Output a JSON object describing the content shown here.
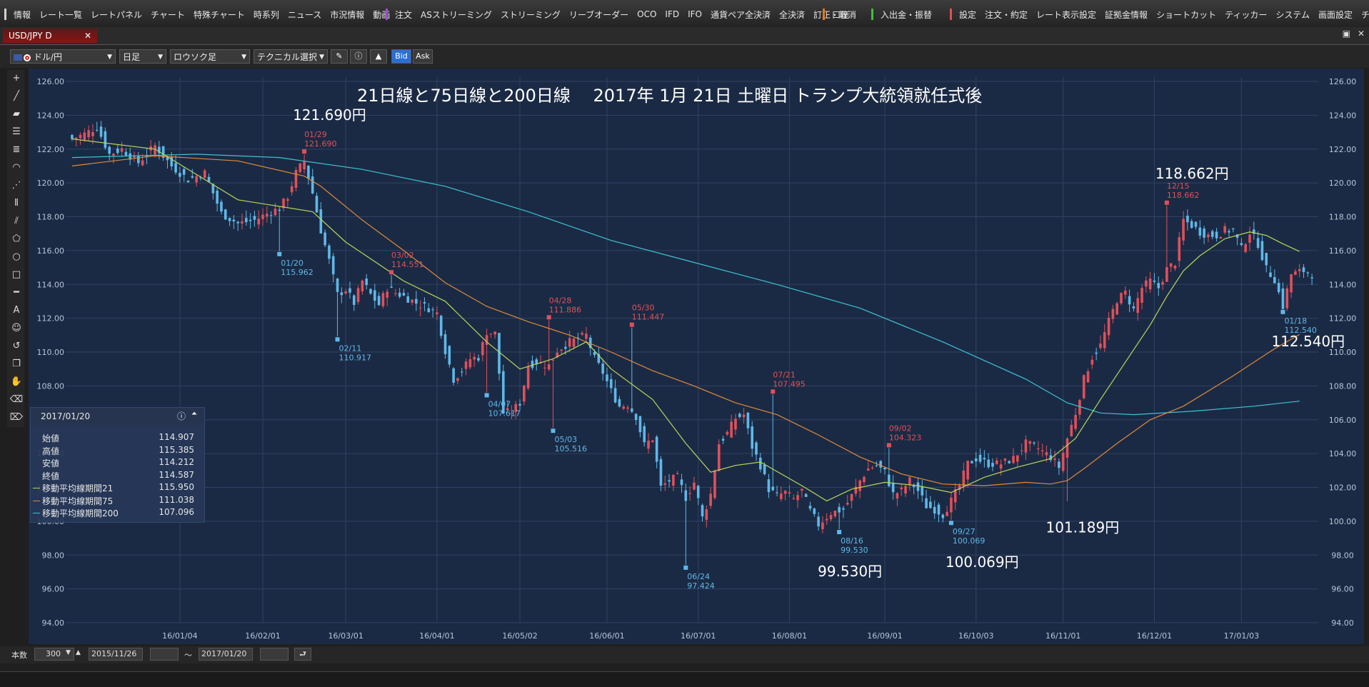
{
  "menu": {
    "group1": [
      "情報",
      "レート一覧",
      "レートパネル",
      "チャート",
      "特殊チャート",
      "時系列",
      "ニュース",
      "市況情報",
      "動画"
    ],
    "group2": [
      "注文",
      "ASストリーミング",
      "ストリーミング",
      "リーブオーダー",
      "OCO",
      "IFD",
      "IFO",
      "通貨ペア全決済",
      "全決済",
      "訂正・取消"
    ],
    "group3": [
      "口座"
    ],
    "group4": [
      "入出金・振替"
    ],
    "group5": [
      "設定",
      "注文・約定",
      "レート表示設定",
      "証拠金情報",
      "ショートカット",
      "ティッカー",
      "システム",
      "画面設定",
      "チャート"
    ]
  },
  "tab": {
    "title": "USD/JPY D"
  },
  "toolbar": {
    "pair": "ドル/円",
    "period": "日足",
    "style": "ロウソク足",
    "technical": "テクニカル選択",
    "bid": "Bid",
    "ask": "Ask"
  },
  "bottom": {
    "count_label": "本数",
    "count_value": "300",
    "from_date": "2015/11/26",
    "tilde": "～",
    "to_date": "2017/01/20"
  },
  "info_panel": {
    "date": "2017/01/20",
    "rows": [
      {
        "label": "始値",
        "value": "114.907",
        "color": ""
      },
      {
        "label": "高値",
        "value": "115.385",
        "color": ""
      },
      {
        "label": "安値",
        "value": "114.212",
        "color": ""
      },
      {
        "label": "終値",
        "value": "114.587",
        "color": ""
      },
      {
        "label": "移動平均線期間21",
        "value": "115.950",
        "color": "#b9d65a"
      },
      {
        "label": "移動平均線期間75",
        "value": "111.038",
        "color": "#e08a3a"
      },
      {
        "label": "移動平均線期間200",
        "value": "107.096",
        "color": "#3cc3d3"
      }
    ]
  },
  "colors": {
    "up": "#e0505a",
    "down": "#5fb8e8",
    "ma21": "#b9d65a",
    "ma75": "#e08a3a",
    "ma200": "#3cc3d3",
    "bg": "#1b2a44",
    "grid": "#2f4265"
  },
  "chart_data": {
    "type": "candlestick",
    "title": "21日線と75日線と200日線　 2017年 1月 21日 土曜日 トランプ大統領就任式後",
    "y_ticks": [
      "126.00",
      "124.00",
      "122.00",
      "120.00",
      "118.00",
      "116.00",
      "114.00",
      "112.00",
      "110.00",
      "108.00",
      "106.00",
      "104.00",
      "102.00",
      "100.00",
      "98.00",
      "96.00",
      "94.00"
    ],
    "ylim": [
      94,
      126
    ],
    "x_ticks": [
      "16/01/04",
      "16/02/01",
      "16/03/01",
      "16/04/01",
      "16/05/02",
      "16/06/01",
      "16/07/01",
      "16/08/01",
      "16/09/01",
      "16/10/03",
      "16/11/01",
      "16/12/01",
      "17/01/03"
    ],
    "x_tick_index": [
      26,
      46,
      66,
      88,
      108,
      129,
      151,
      173,
      196,
      218,
      239,
      261,
      282
    ],
    "bars": 300,
    "path": [
      [
        0,
        122.6
      ],
      [
        3,
        122.9
      ],
      [
        6,
        123.3
      ],
      [
        9,
        121.7
      ],
      [
        12,
        122.0
      ],
      [
        16,
        121.2
      ],
      [
        20,
        122.2
      ],
      [
        24,
        121.0
      ],
      [
        28,
        120.2
      ],
      [
        32,
        120.6
      ],
      [
        36,
        118.2
      ],
      [
        40,
        117.6
      ],
      [
        44,
        117.8
      ],
      [
        48,
        118.3
      ],
      [
        50,
        118.5
      ],
      [
        52,
        119.2
      ],
      [
        54,
        120.6
      ],
      [
        56,
        121.3
      ],
      [
        58,
        119.4
      ],
      [
        60,
        117.2
      ],
      [
        62,
        115.4
      ],
      [
        64,
        113.4
      ],
      [
        66,
        113.7
      ],
      [
        68,
        112.9
      ],
      [
        70,
        114.2
      ],
      [
        72,
        113.4
      ],
      [
        74,
        112.8
      ],
      [
        76,
        113.8
      ],
      [
        78,
        113.5
      ],
      [
        80,
        113.3
      ],
      [
        83,
        112.9
      ],
      [
        86,
        112.6
      ],
      [
        88,
        112.3
      ],
      [
        90,
        110.1
      ],
      [
        92,
        108.4
      ],
      [
        94,
        108.9
      ],
      [
        96,
        109.6
      ],
      [
        98,
        109.7
      ],
      [
        100,
        111.2
      ],
      [
        102,
        111.1
      ],
      [
        104,
        106.4
      ],
      [
        106,
        106.5
      ],
      [
        108,
        107.0
      ],
      [
        110,
        109.2
      ],
      [
        112,
        109.4
      ],
      [
        115,
        109.2
      ],
      [
        117,
        110.1
      ],
      [
        120,
        110.6
      ],
      [
        124,
        111.0
      ],
      [
        126,
        109.6
      ],
      [
        128,
        108.8
      ],
      [
        130,
        107.7
      ],
      [
        132,
        106.8
      ],
      [
        134,
        106.9
      ],
      [
        136,
        106.2
      ],
      [
        138,
        104.5
      ],
      [
        140,
        104.9
      ],
      [
        142,
        102.0
      ],
      [
        144,
        102.4
      ],
      [
        146,
        102.6
      ],
      [
        148,
        101.4
      ],
      [
        150,
        102.3
      ],
      [
        152,
        100.2
      ],
      [
        154,
        101.6
      ],
      [
        156,
        104.6
      ],
      [
        158,
        105.2
      ],
      [
        160,
        106.1
      ],
      [
        162,
        106.3
      ],
      [
        164,
        104.4
      ],
      [
        166,
        103.3
      ],
      [
        168,
        101.9
      ],
      [
        170,
        101.5
      ],
      [
        172,
        101.7
      ],
      [
        174,
        101.3
      ],
      [
        176,
        101.8
      ],
      [
        178,
        100.6
      ],
      [
        180,
        99.8
      ],
      [
        183,
        100.5
      ],
      [
        186,
        100.7
      ],
      [
        188,
        101.5
      ],
      [
        190,
        102.4
      ],
      [
        192,
        103.1
      ],
      [
        194,
        103.3
      ],
      [
        196,
        102.9
      ],
      [
        198,
        101.6
      ],
      [
        200,
        101.8
      ],
      [
        202,
        102.4
      ],
      [
        204,
        101.8
      ],
      [
        206,
        100.9
      ],
      [
        208,
        100.7
      ],
      [
        210,
        100.4
      ],
      [
        212,
        101.2
      ],
      [
        214,
        102.1
      ],
      [
        216,
        103.4
      ],
      [
        218,
        103.7
      ],
      [
        221,
        103.4
      ],
      [
        224,
        103.4
      ],
      [
        227,
        103.7
      ],
      [
        230,
        104.6
      ],
      [
        233,
        104.3
      ],
      [
        236,
        103.8
      ],
      [
        238,
        103.2
      ],
      [
        240,
        104.9
      ],
      [
        242,
        106.4
      ],
      [
        244,
        108.4
      ],
      [
        246,
        109.7
      ],
      [
        248,
        110.4
      ],
      [
        250,
        111.8
      ],
      [
        252,
        113.1
      ],
      [
        254,
        113.5
      ],
      [
        256,
        112.5
      ],
      [
        258,
        113.8
      ],
      [
        260,
        114.2
      ],
      [
        262,
        113.8
      ],
      [
        264,
        114.9
      ],
      [
        266,
        115.3
      ],
      [
        268,
        117.8
      ],
      [
        270,
        117.5
      ],
      [
        272,
        117.1
      ],
      [
        274,
        116.9
      ],
      [
        276,
        116.9
      ],
      [
        278,
        117.2
      ],
      [
        280,
        117.2
      ],
      [
        282,
        116.1
      ],
      [
        284,
        117.1
      ],
      [
        286,
        116.4
      ],
      [
        288,
        114.9
      ],
      [
        290,
        114.3
      ],
      [
        292,
        112.7
      ],
      [
        294,
        114.6
      ],
      [
        297,
        114.8
      ],
      [
        299,
        114.6
      ]
    ],
    "ma21": [
      [
        0,
        122.6
      ],
      [
        20,
        122.0
      ],
      [
        40,
        119.0
      ],
      [
        58,
        118.3
      ],
      [
        66,
        116.5
      ],
      [
        80,
        114.2
      ],
      [
        90,
        113.0
      ],
      [
        100,
        110.6
      ],
      [
        108,
        109.0
      ],
      [
        116,
        109.6
      ],
      [
        124,
        110.6
      ],
      [
        130,
        109.0
      ],
      [
        140,
        107.2
      ],
      [
        148,
        104.6
      ],
      [
        154,
        102.9
      ],
      [
        160,
        103.3
      ],
      [
        166,
        103.5
      ],
      [
        176,
        102.1
      ],
      [
        182,
        101.2
      ],
      [
        188,
        101.9
      ],
      [
        196,
        102.3
      ],
      [
        204,
        102.1
      ],
      [
        212,
        101.7
      ],
      [
        220,
        102.6
      ],
      [
        228,
        103.2
      ],
      [
        236,
        103.7
      ],
      [
        242,
        104.9
      ],
      [
        248,
        107.2
      ],
      [
        254,
        109.4
      ],
      [
        260,
        111.6
      ],
      [
        264,
        113.3
      ],
      [
        268,
        114.8
      ],
      [
        272,
        115.7
      ],
      [
        278,
        116.7
      ],
      [
        284,
        117.1
      ],
      [
        288,
        116.9
      ],
      [
        292,
        116.4
      ],
      [
        296,
        115.95
      ]
    ],
    "ma75": [
      [
        0,
        121.0
      ],
      [
        20,
        121.6
      ],
      [
        40,
        121.3
      ],
      [
        56,
        120.4
      ],
      [
        60,
        119.8
      ],
      [
        70,
        117.8
      ],
      [
        80,
        116.0
      ],
      [
        90,
        114.1
      ],
      [
        100,
        112.7
      ],
      [
        110,
        111.8
      ],
      [
        120,
        111.0
      ],
      [
        130,
        110.0
      ],
      [
        140,
        108.9
      ],
      [
        150,
        108.0
      ],
      [
        160,
        107.0
      ],
      [
        170,
        106.3
      ],
      [
        180,
        105.1
      ],
      [
        190,
        103.8
      ],
      [
        200,
        102.8
      ],
      [
        210,
        102.2
      ],
      [
        220,
        102.1
      ],
      [
        230,
        102.3
      ],
      [
        236,
        102.2
      ],
      [
        240,
        102.4
      ],
      [
        244,
        103.1
      ],
      [
        252,
        104.6
      ],
      [
        260,
        106.0
      ],
      [
        268,
        106.8
      ],
      [
        280,
        108.6
      ],
      [
        290,
        110.2
      ],
      [
        296,
        111.04
      ]
    ],
    "ma200": [
      [
        0,
        121.5
      ],
      [
        30,
        121.7
      ],
      [
        50,
        121.5
      ],
      [
        70,
        120.8
      ],
      [
        90,
        119.8
      ],
      [
        110,
        118.3
      ],
      [
        130,
        116.6
      ],
      [
        150,
        115.3
      ],
      [
        170,
        114.0
      ],
      [
        190,
        112.6
      ],
      [
        210,
        110.6
      ],
      [
        230,
        108.4
      ],
      [
        240,
        107.0
      ],
      [
        248,
        106.4
      ],
      [
        256,
        106.3
      ],
      [
        270,
        106.5
      ],
      [
        285,
        106.8
      ],
      [
        296,
        107.1
      ]
    ],
    "highs": [
      {
        "i": 56,
        "price": 121.69,
        "date": "01/29",
        "value": "121.690"
      },
      {
        "i": 77,
        "price": 114.551,
        "date": "03/02",
        "value": "114.551"
      },
      {
        "i": 115,
        "price": 111.886,
        "date": "04/28",
        "value": "111.886"
      },
      {
        "i": 135,
        "price": 111.447,
        "date": "05/30",
        "value": "111.447"
      },
      {
        "i": 169,
        "price": 107.495,
        "date": "07/21",
        "value": "107.495"
      },
      {
        "i": 197,
        "price": 104.323,
        "date": "09/02",
        "value": "104.323"
      },
      {
        "i": 264,
        "price": 118.662,
        "date": "12/15",
        "value": "118.662"
      }
    ],
    "lows": [
      {
        "i": 50,
        "price": 115.962,
        "date": "01/20",
        "value": "115.962"
      },
      {
        "i": 64,
        "price": 110.917,
        "date": "02/11",
        "value": "110.917"
      },
      {
        "i": 100,
        "price": 107.617,
        "date": "04/07",
        "value": "107.617"
      },
      {
        "i": 116,
        "price": 105.516,
        "date": "05/03",
        "value": "105.516"
      },
      {
        "i": 148,
        "price": 97.424,
        "date": "06/24",
        "value": "97.424"
      },
      {
        "i": 185,
        "price": 99.53,
        "date": "08/16",
        "value": "99.530"
      },
      {
        "i": 212,
        "price": 100.069,
        "date": "09/27",
        "value": "100.069"
      },
      {
        "i": 292,
        "price": 112.54,
        "date": "01/18",
        "value": "112.540"
      }
    ],
    "callouts": [
      {
        "text": "121.690円",
        "anchor_i": 56,
        "anchor_price": 121.69
      },
      {
        "text": "118.662円",
        "anchor_i": 264,
        "anchor_price": 118.662
      },
      {
        "text": "112.540円",
        "anchor_i": 292,
        "anchor_price": 112.54
      },
      {
        "text": "101.189円",
        "anchor_i": 240,
        "anchor_price": 101.189
      },
      {
        "text": "99.530円",
        "anchor_i": 185,
        "anchor_price": 99.53
      },
      {
        "text": "100.069円",
        "anchor_i": 212,
        "anchor_price": 100.069
      }
    ]
  }
}
